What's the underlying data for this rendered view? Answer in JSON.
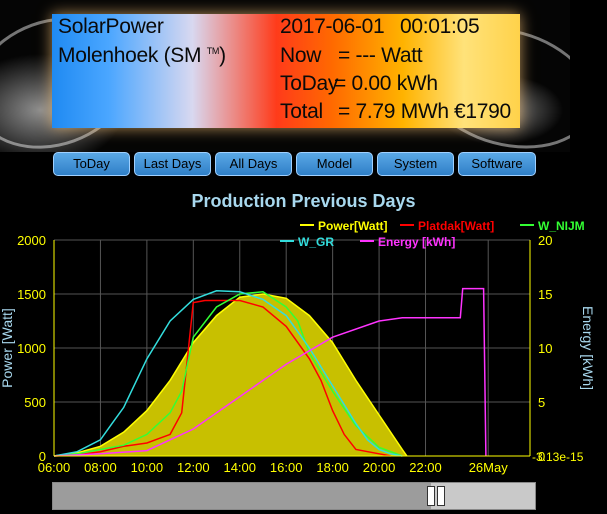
{
  "banner": {
    "site_line1": "SolarPower",
    "site_line2": "Molenhoek (SM",
    "tm": "TM",
    "site_line2_end": ")",
    "date": "2017-06-01",
    "time": "00:01:05",
    "now_label": "Now",
    "now_value": "= --- Watt",
    "today_label": "ToDay",
    "today_value": "= 0.00 kWh",
    "total_label": "Total",
    "total_value": "= 7.79 MWh",
    "total_money": "€1790"
  },
  "nav": {
    "items": [
      "ToDay",
      "Last Days",
      "All Days",
      "Model",
      "System",
      "Software"
    ]
  },
  "chart_data": {
    "type": "line",
    "title": "Production Previous Days",
    "ylabel": "Power [Watt]",
    "y2label": "Energy [kWh]",
    "ylim": [
      0,
      2000
    ],
    "y2lim": [
      0,
      20
    ],
    "y2_extra_tick": "-3.13e-15",
    "x_ticks": [
      "06:00",
      "08:00",
      "10:00",
      "12:00",
      "14:00",
      "16:00",
      "18:00",
      "20:00",
      "22:00",
      "26May"
    ],
    "y_ticks": [
      0,
      500,
      1000,
      1500,
      2000
    ],
    "y2_ticks": [
      0,
      5,
      10,
      15,
      20
    ],
    "grid": true,
    "legend_position": "top-right",
    "series": [
      {
        "name": "Power[Watt]",
        "color": "#ffff00",
        "fill": "#c8c000",
        "x": [
          6,
          7,
          8,
          9,
          10,
          11,
          12,
          13,
          14,
          15,
          16,
          17,
          18,
          19,
          20,
          21,
          21.2
        ],
        "y": [
          0,
          30,
          90,
          220,
          420,
          700,
          1050,
          1300,
          1470,
          1500,
          1460,
          1300,
          1050,
          700,
          380,
          60,
          0
        ]
      },
      {
        "name": "Platdak[Watt]",
        "color": "#ff0000",
        "x": [
          6,
          7,
          8,
          9,
          10,
          10.5,
          11,
          11.5,
          12,
          12.5,
          13,
          14,
          15,
          16,
          17,
          17.5,
          18,
          18.5,
          19,
          20,
          20.5
        ],
        "y": [
          0,
          10,
          40,
          90,
          120,
          160,
          200,
          400,
          1420,
          1440,
          1440,
          1440,
          1380,
          1200,
          900,
          700,
          420,
          200,
          60,
          20,
          0
        ]
      },
      {
        "name": "W_NIJM",
        "color": "#33ff33",
        "x": [
          6,
          7,
          8,
          9,
          10,
          11,
          11.5,
          12,
          13,
          14,
          15,
          16,
          16.5,
          17,
          18,
          19,
          20,
          21
        ],
        "y": [
          0,
          20,
          60,
          100,
          200,
          400,
          600,
          1100,
          1380,
          1500,
          1520,
          1380,
          1250,
          950,
          600,
          280,
          80,
          0
        ]
      },
      {
        "name": "W_GR",
        "color": "#33dddd",
        "x": [
          6,
          7,
          8,
          8.5,
          9,
          10,
          11,
          12,
          13,
          14,
          15,
          16,
          17,
          18,
          19,
          19.5,
          20,
          20.5,
          21
        ],
        "y": [
          0,
          40,
          150,
          300,
          450,
          900,
          1250,
          1450,
          1530,
          1520,
          1450,
          1300,
          1000,
          650,
          300,
          150,
          60,
          20,
          0
        ]
      },
      {
        "name": "Energy [kWh]",
        "color": "#ff33ff",
        "axis": "right",
        "x": [
          6,
          8,
          10,
          12,
          14,
          16,
          18,
          20,
          21,
          22,
          23.5,
          23.6,
          24.5,
          24.6
        ],
        "y": [
          0,
          0.2,
          0.5,
          2.5,
          5.5,
          8.5,
          11,
          12.5,
          12.8,
          12.8,
          12.8,
          15.5,
          15.5,
          0
        ]
      }
    ]
  }
}
